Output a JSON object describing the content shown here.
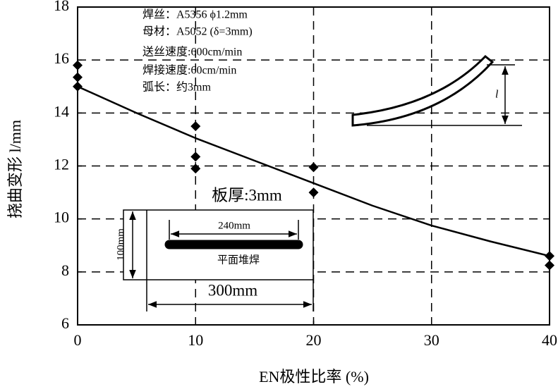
{
  "chart_data": {
    "type": "scatter",
    "xlabel": "EN极性比率 (%)",
    "ylabel": "挠曲变形 l/mm",
    "xlim": [
      0,
      40
    ],
    "ylim": [
      6,
      18
    ],
    "xticks": [
      0,
      10,
      20,
      30,
      40
    ],
    "yticks": [
      6,
      8,
      10,
      12,
      14,
      16,
      18
    ],
    "grid": true,
    "series": [
      {
        "type": "scatter",
        "color": "#000000",
        "x": [
          0,
          0,
          0,
          10,
          10,
          10,
          20,
          20,
          40,
          40
        ],
        "values": [
          15.8,
          15.35,
          15.0,
          13.5,
          12.35,
          11.9,
          11.95,
          11.0,
          8.6,
          8.25
        ]
      },
      {
        "type": "line",
        "color": "#000000",
        "x": [
          0,
          5,
          10,
          15,
          20,
          25,
          30,
          35,
          40
        ],
        "values": [
          15.0,
          14.0,
          13.05,
          12.2,
          11.35,
          10.5,
          9.75,
          9.15,
          8.6
        ]
      }
    ],
    "annotations": [
      "焊丝：A5356 ϕ1.2mm",
      "母材：A5052 (δ=3mm)",
      "送丝速度:600cm/min",
      "焊接速度:60cm/min",
      "弧长：约3mm",
      "板厚:3mm",
      "240mm",
      "100mm",
      "平面堆焊",
      "300mm",
      "l"
    ]
  }
}
